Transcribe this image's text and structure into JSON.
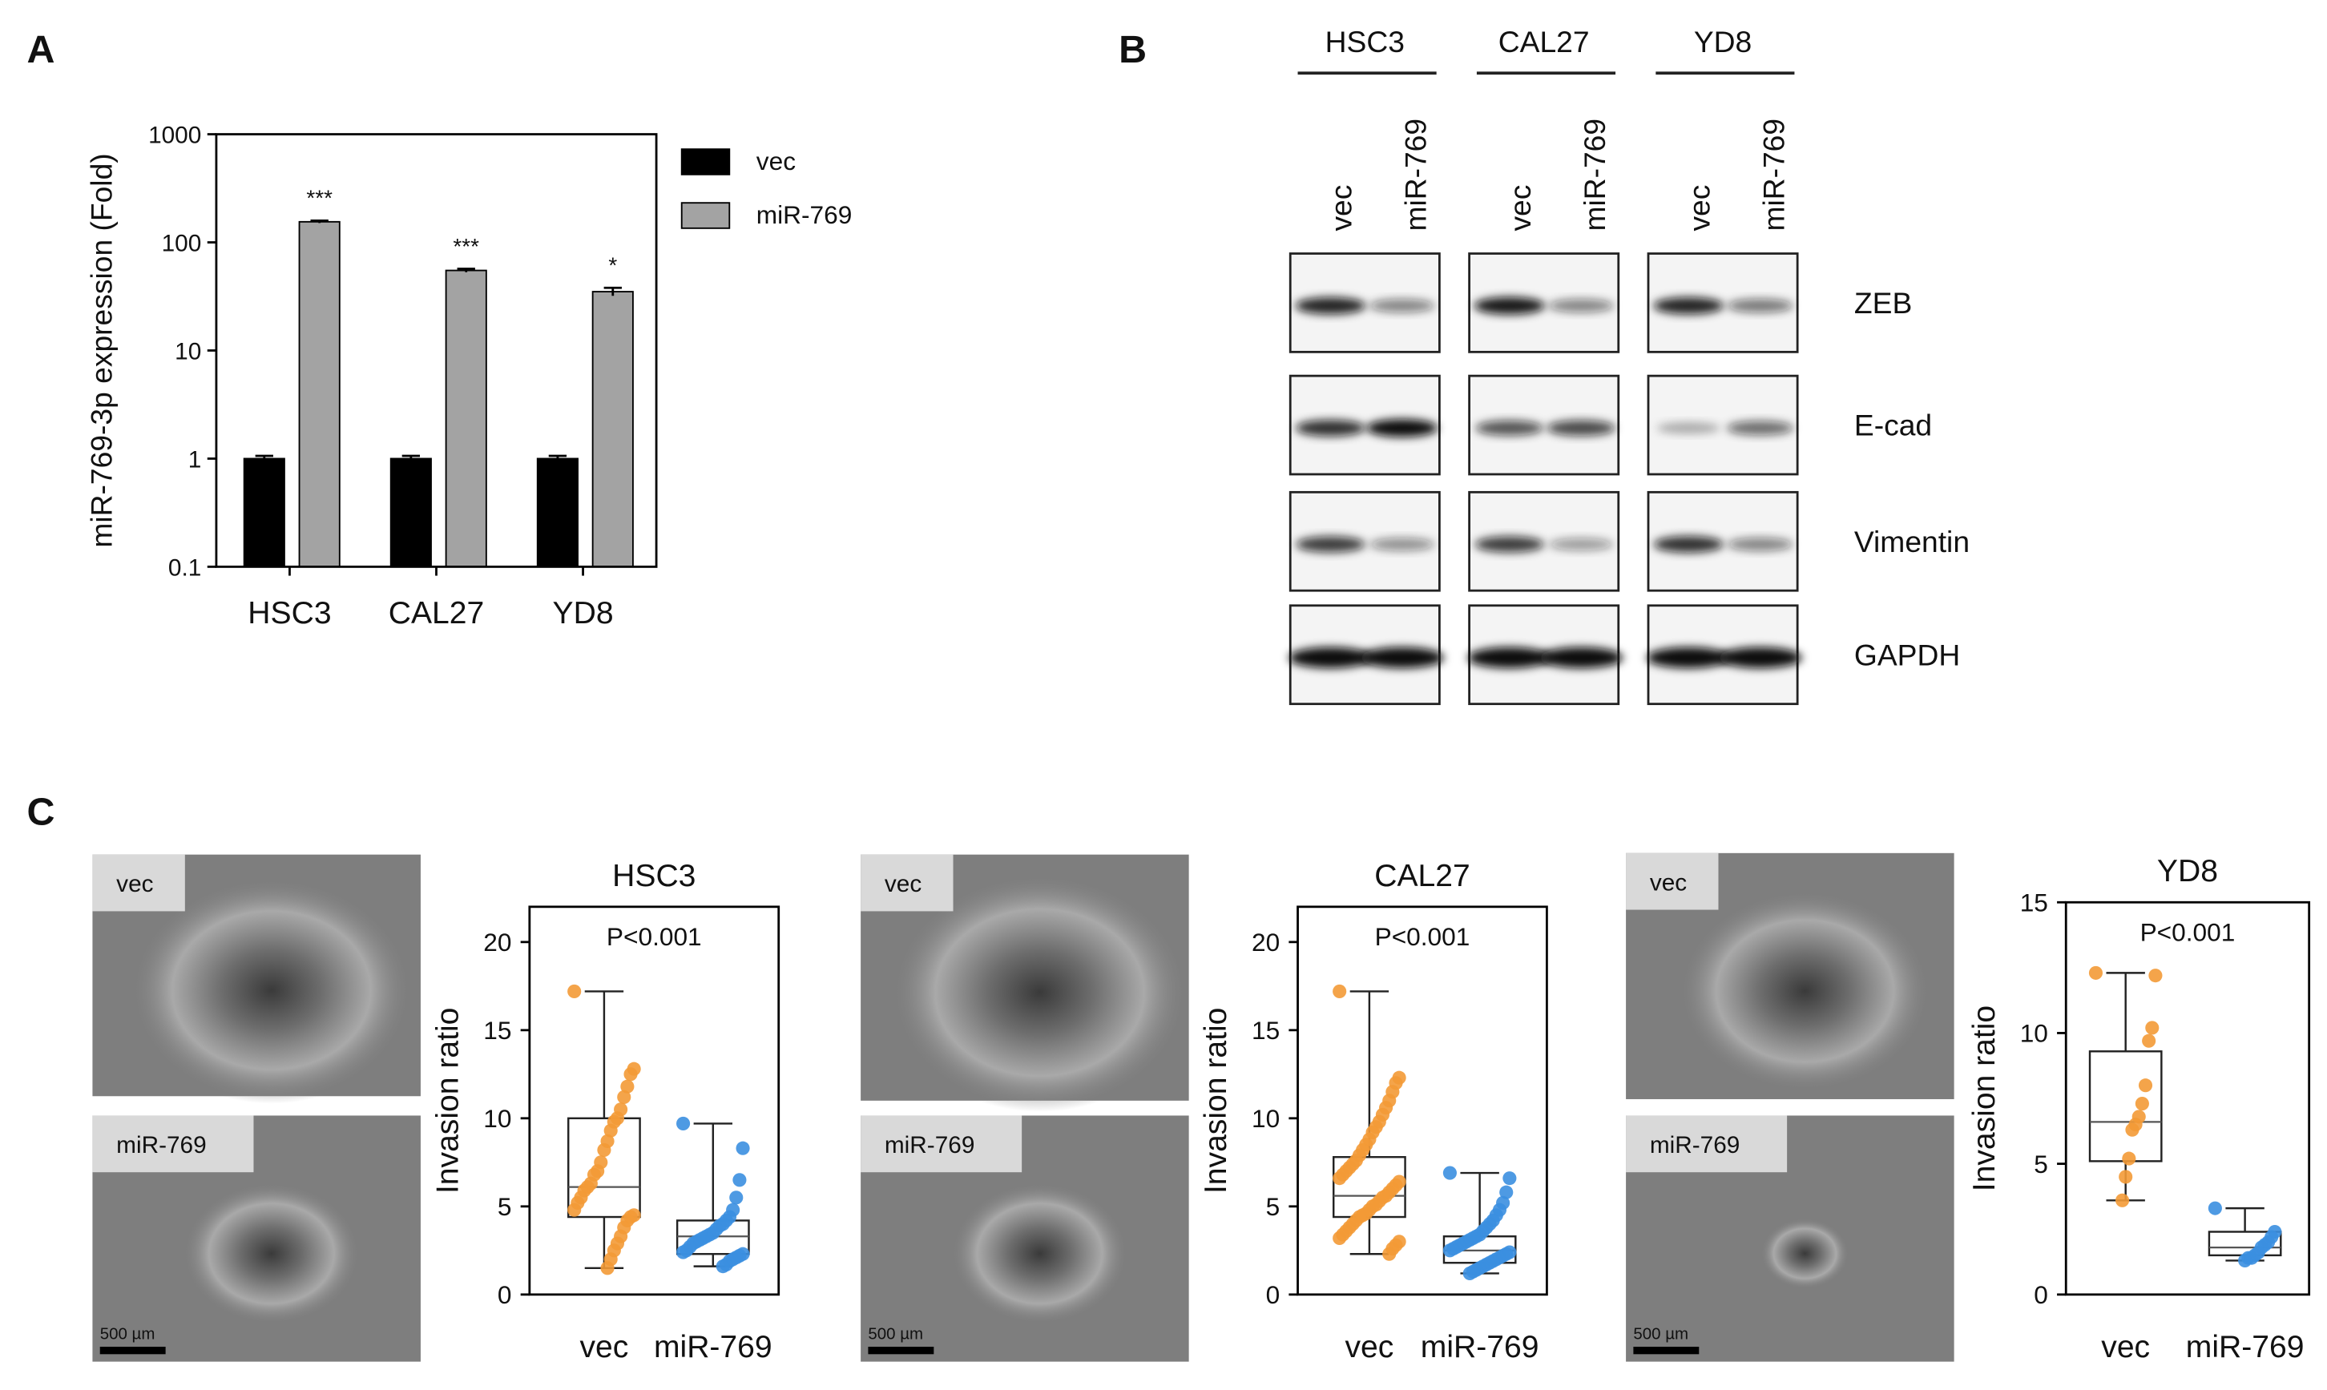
{
  "panel_labels": [
    "A",
    "B",
    "C"
  ],
  "chart_data": [
    {
      "type": "bar",
      "log_scale": true,
      "ylabel": "miR-769-3p expression (Fold)",
      "categories": [
        "HSC3",
        "CAL27",
        "YD8"
      ],
      "series": [
        {
          "name": "vec",
          "color": "#000000",
          "values": [
            1,
            1,
            1
          ],
          "errors": [
            0.06,
            0.06,
            0.06
          ]
        },
        {
          "name": "miR-769",
          "color": "#a3a3a3",
          "values": [
            155,
            55,
            35
          ],
          "errors": [
            4,
            2,
            3
          ]
        }
      ],
      "annotations": [
        "***",
        "***",
        "*"
      ],
      "ylim": [
        0.1,
        1000
      ],
      "yticks": [
        0.1,
        1,
        10,
        100,
        1000
      ],
      "grid": false,
      "legend": "outside-right"
    },
    {
      "type": "box",
      "title": "HSC3",
      "annotation": "P<0.001",
      "ylabel": "Invasion ratio",
      "categories": [
        "vec",
        "miR-769"
      ],
      "ylim": [
        0,
        22
      ],
      "yticks": [
        0,
        5,
        10,
        15,
        20
      ],
      "series": [
        {
          "color": "#f39a36",
          "values": [
            17.2,
            12.8,
            12.5,
            11.8,
            11.2,
            10.5,
            10,
            9.8,
            9.3,
            8.7,
            8.2,
            7.5,
            7,
            6.8,
            6.3,
            6.1,
            5.9,
            5.5,
            5.2,
            4.8,
            4.5,
            4.4,
            4.2,
            3.8,
            3.3,
            2.9,
            2.5,
            2,
            1.5
          ],
          "whisker_low": 1.5,
          "q1": 4.4,
          "median": 6.1,
          "q3": 10,
          "whisker_high": 17.2
        },
        {
          "color": "#3b8fe0",
          "values": [
            9.7,
            8.3,
            6.5,
            5.5,
            4.8,
            4.4,
            4.2,
            4,
            3.9,
            3.7,
            3.5,
            3.4,
            3.3,
            3.2,
            3.1,
            3,
            2.9,
            2.7,
            2.5,
            2.4,
            2.3,
            2.2,
            2.1,
            2,
            1.9,
            1.7,
            1.6
          ],
          "whisker_low": 1.6,
          "q1": 2.3,
          "median": 3.3,
          "q3": 4.2,
          "whisker_high": 9.7
        }
      ]
    },
    {
      "type": "box",
      "title": "CAL27",
      "annotation": "P<0.001",
      "ylabel": "Invasion ratio",
      "categories": [
        "vec",
        "miR-769"
      ],
      "ylim": [
        0,
        22
      ],
      "yticks": [
        0,
        5,
        10,
        15,
        20
      ],
      "series": [
        {
          "color": "#f39a36",
          "values": [
            17.2,
            12.3,
            12,
            11.5,
            11,
            10.6,
            10.2,
            9.8,
            9.5,
            9.2,
            8.8,
            8.5,
            8.2,
            7.9,
            7.6,
            7.4,
            7.2,
            7,
            6.8,
            6.6,
            6.4,
            6.2,
            6,
            5.8,
            5.6,
            5.5,
            5.3,
            5.1,
            5,
            4.8,
            4.6,
            4.5,
            4.4,
            4.2,
            4,
            3.8,
            3.6,
            3.4,
            3.2,
            3,
            2.8,
            2.6,
            2.3
          ],
          "whisker_low": 2.3,
          "q1": 4.4,
          "median": 5.6,
          "q3": 7.8,
          "whisker_high": 17.2
        },
        {
          "color": "#3b8fe0",
          "values": [
            6.9,
            6.6,
            5.8,
            5.2,
            4.8,
            4.5,
            4.2,
            4,
            3.8,
            3.6,
            3.4,
            3.3,
            3.2,
            3.1,
            3,
            2.9,
            2.8,
            2.7,
            2.6,
            2.5,
            2.4,
            2.3,
            2.2,
            2.1,
            2,
            1.9,
            1.8,
            1.7,
            1.6,
            1.5,
            1.4,
            1.3,
            1.2
          ],
          "whisker_low": 1.2,
          "q1": 1.8,
          "median": 2.5,
          "q3": 3.3,
          "whisker_high": 6.9
        }
      ]
    },
    {
      "type": "box",
      "title": "YD8",
      "annotation": "P<0.001",
      "ylabel": "Invasion ratio",
      "categories": [
        "vec",
        "miR-769"
      ],
      "ylim": [
        0,
        15
      ],
      "yticks": [
        0,
        5,
        10,
        15
      ],
      "series": [
        {
          "color": "#f39a36",
          "values": [
            12.3,
            12.2,
            10.2,
            9.7,
            8,
            7.3,
            6.8,
            6.5,
            6.3,
            5.2,
            4.5,
            3.6
          ],
          "whisker_low": 3.6,
          "q1": 5.1,
          "median": 6.6,
          "q3": 9.3,
          "whisker_high": 12.3
        },
        {
          "color": "#3b8fe0",
          "values": [
            3.3,
            2.4,
            2.2,
            2,
            1.9,
            1.8,
            1.6,
            1.5,
            1.4,
            1.4,
            1.3
          ],
          "whisker_low": 1.3,
          "q1": 1.5,
          "median": 1.8,
          "q3": 2.4,
          "whisker_high": 3.3
        }
      ]
    }
  ],
  "blot": {
    "cell_lines": [
      "HSC3",
      "CAL27",
      "YD8"
    ],
    "lanes": [
      "vec",
      "miR-769"
    ],
    "proteins": [
      "ZEB",
      "E-cad",
      "Vimentin",
      "GAPDH"
    ]
  },
  "micrographs": {
    "labels": [
      "vec",
      "miR-769"
    ],
    "scale_bar": "500 µm"
  }
}
